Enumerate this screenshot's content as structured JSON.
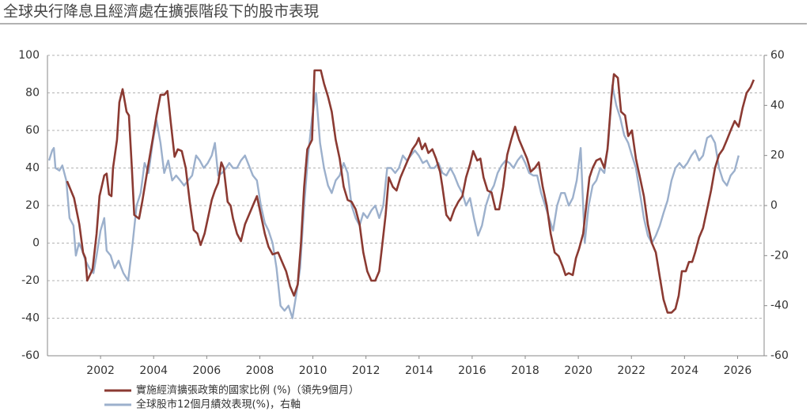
{
  "chart_data": {
    "type": "line",
    "title": "全球央行降息且經濟處在擴張階段下的股市表現",
    "xlim": [
      2000,
      2027
    ],
    "xticks": [
      2002,
      2004,
      2006,
      2008,
      2010,
      2012,
      2014,
      2016,
      2018,
      2020,
      2022,
      2024,
      2026
    ],
    "ylim": [
      -60,
      100
    ],
    "yticks": [
      -60,
      -40,
      -20,
      0,
      20,
      40,
      60,
      80,
      100
    ],
    "y2lim": [
      -60,
      60
    ],
    "y2ticks": [
      -60,
      -40,
      -20,
      0,
      20,
      40,
      60
    ],
    "grid": true,
    "legend": "bottom",
    "series": [
      {
        "name": "實施經濟擴張政策的國家比例 (%)（領先9個月）",
        "color": "#8b3a32",
        "x": [
          2000.74,
          2001.0,
          2001.2,
          2001.34,
          2001.43,
          2001.5,
          2001.7,
          2001.85,
          2001.96,
          2002.14,
          2002.23,
          2002.32,
          2002.41,
          2002.47,
          2002.62,
          2002.71,
          2002.83,
          2002.98,
          2003.07,
          2003.18,
          2003.27,
          2003.45,
          2003.57,
          2003.78,
          2003.96,
          2004.11,
          2004.26,
          2004.4,
          2004.52,
          2004.64,
          2004.79,
          2004.91,
          2005.06,
          2005.21,
          2005.36,
          2005.51,
          2005.65,
          2005.77,
          2005.92,
          2006.07,
          2006.19,
          2006.31,
          2006.43,
          2006.55,
          2006.64,
          2006.79,
          2006.9,
          2006.99,
          2007.14,
          2007.29,
          2007.44,
          2007.59,
          2007.8,
          2007.89,
          2008.04,
          2008.19,
          2008.33,
          2008.48,
          2008.69,
          2008.84,
          2008.99,
          2009.14,
          2009.29,
          2009.43,
          2009.55,
          2009.67,
          2009.79,
          2009.97,
          2010.06,
          2010.3,
          2010.42,
          2010.57,
          2010.71,
          2010.86,
          2011.01,
          2011.16,
          2011.31,
          2011.46,
          2011.61,
          2011.76,
          2011.9,
          2012.05,
          2012.2,
          2012.35,
          2012.5,
          2012.62,
          2012.74,
          2012.86,
          2013.01,
          2013.15,
          2013.3,
          2013.45,
          2013.6,
          2013.75,
          2013.9,
          2013.99,
          2014.11,
          2014.23,
          2014.35,
          2014.5,
          2014.64,
          2014.79,
          2014.88,
          2015.03,
          2015.18,
          2015.33,
          2015.48,
          2015.63,
          2015.77,
          2015.92,
          2016.04,
          2016.19,
          2016.31,
          2016.43,
          2016.58,
          2016.73,
          2016.88,
          2017.02,
          2017.17,
          2017.32,
          2017.47,
          2017.62,
          2017.77,
          2017.92,
          2018.07,
          2018.21,
          2018.36,
          2018.51,
          2018.66,
          2018.81,
          2018.96,
          2019.11,
          2019.26,
          2019.4,
          2019.52,
          2019.64,
          2019.79,
          2019.91,
          2020.03,
          2020.18,
          2020.3,
          2020.42,
          2020.54,
          2020.68,
          2020.83,
          2020.98,
          2021.1,
          2021.25,
          2021.34,
          2021.49,
          2021.61,
          2021.76,
          2021.88,
          2022.02,
          2022.17,
          2022.32,
          2022.47,
          2022.62,
          2022.77,
          2022.92,
          2023.07,
          2023.21,
          2023.36,
          2023.51,
          2023.66,
          2023.78,
          2023.9,
          2024.05,
          2024.17,
          2024.29,
          2024.4,
          2024.55,
          2024.7,
          2024.85,
          2025.0,
          2025.15,
          2025.3,
          2025.45,
          2025.6,
          2025.74,
          2025.89,
          2026.04,
          2026.19,
          2026.34,
          2026.49,
          2026.61
        ],
        "values": [
          33,
          24,
          10,
          -5,
          -8,
          -20,
          -14,
          5,
          25,
          36,
          37,
          26,
          25,
          40,
          55,
          75,
          82,
          70,
          68,
          40,
          15,
          13,
          22,
          40,
          55,
          68,
          79,
          79,
          81,
          65,
          46,
          50,
          49,
          40,
          22,
          7,
          5,
          -1,
          5,
          15,
          23,
          28,
          32,
          43,
          40,
          22,
          20,
          13,
          5,
          1,
          10,
          15,
          22,
          25,
          15,
          5,
          -2,
          -6,
          -5,
          -10,
          -15,
          -23,
          -28,
          -22,
          0,
          30,
          50,
          55,
          92,
          92,
          85,
          78,
          70,
          55,
          45,
          30,
          23,
          22,
          18,
          10,
          -5,
          -15,
          -20,
          -20,
          -15,
          0,
          15,
          35,
          30,
          28,
          35,
          40,
          45,
          50,
          53,
          56,
          50,
          53,
          48,
          50,
          45,
          38,
          30,
          15,
          12,
          18,
          22,
          25,
          35,
          42,
          49,
          44,
          45,
          35,
          28,
          27,
          18,
          18,
          30,
          47,
          55,
          62,
          55,
          50,
          45,
          38,
          40,
          43,
          30,
          20,
          5,
          -5,
          -7,
          -12,
          -17,
          -16,
          -17,
          -8,
          -3,
          5,
          20,
          35,
          40,
          44,
          45,
          40,
          50,
          78,
          90,
          88,
          70,
          68,
          57,
          60,
          45,
          35,
          25,
          10,
          0,
          -5,
          -18,
          -30,
          -37,
          -37,
          -35,
          -28,
          -15,
          -15,
          -10,
          -10,
          -5,
          3,
          8,
          18,
          28,
          40,
          47,
          50,
          55,
          60,
          65,
          62,
          72,
          80,
          83,
          87
        ]
      },
      {
        "name": "全球股市12個月績效表現(%)，右軸",
        "color": "#9cb0cc",
        "axis": "y2",
        "x": [
          2000.06,
          2000.18,
          2000.24,
          2000.3,
          2000.45,
          2000.56,
          2000.71,
          2000.83,
          2000.98,
          2001.07,
          2001.19,
          2001.31,
          2001.43,
          2001.58,
          2001.73,
          2001.85,
          2002.0,
          2002.14,
          2002.23,
          2002.38,
          2002.53,
          2002.68,
          2002.86,
          2003.04,
          2003.21,
          2003.36,
          2003.51,
          2003.66,
          2003.81,
          2003.96,
          2004.11,
          2004.26,
          2004.4,
          2004.55,
          2004.7,
          2004.85,
          2005.0,
          2005.15,
          2005.3,
          2005.45,
          2005.6,
          2005.74,
          2005.89,
          2006.04,
          2006.19,
          2006.31,
          2006.43,
          2006.58,
          2006.73,
          2006.85,
          2006.99,
          2007.14,
          2007.29,
          2007.44,
          2007.59,
          2007.74,
          2007.89,
          2008.04,
          2008.19,
          2008.33,
          2008.48,
          2008.63,
          2008.78,
          2008.93,
          2009.08,
          2009.23,
          2009.38,
          2009.52,
          2009.67,
          2009.82,
          2009.97,
          2010.12,
          2010.27,
          2010.42,
          2010.57,
          2010.71,
          2010.86,
          2011.01,
          2011.16,
          2011.31,
          2011.46,
          2011.61,
          2011.76,
          2011.9,
          2012.05,
          2012.2,
          2012.35,
          2012.5,
          2012.65,
          2012.8,
          2012.95,
          2013.1,
          2013.24,
          2013.39,
          2013.54,
          2013.69,
          2013.84,
          2013.99,
          2014.14,
          2014.29,
          2014.43,
          2014.58,
          2014.73,
          2014.88,
          2015.03,
          2015.18,
          2015.33,
          2015.48,
          2015.63,
          2015.77,
          2015.92,
          2016.07,
          2016.22,
          2016.37,
          2016.52,
          2016.67,
          2016.82,
          2016.96,
          2017.11,
          2017.26,
          2017.41,
          2017.56,
          2017.71,
          2017.86,
          2018.0,
          2018.15,
          2018.3,
          2018.45,
          2018.6,
          2018.75,
          2018.9,
          2019.05,
          2019.2,
          2019.35,
          2019.49,
          2019.64,
          2019.79,
          2019.94,
          2020.09,
          2020.24,
          2020.39,
          2020.54,
          2020.68,
          2020.83,
          2020.98,
          2021.13,
          2021.28,
          2021.43,
          2021.58,
          2021.73,
          2021.88,
          2022.02,
          2022.17,
          2022.32,
          2022.47,
          2022.62,
          2022.77,
          2022.92,
          2023.07,
          2023.21,
          2023.36,
          2023.51,
          2023.66,
          2023.81,
          2023.96,
          2024.11,
          2024.26,
          2024.4,
          2024.55,
          2024.7,
          2024.85,
          2025.0,
          2025.15,
          2025.3,
          2025.45,
          2025.6,
          2025.74,
          2025.89,
          2026.04
        ],
        "values": [
          18,
          22,
          23,
          15,
          14,
          16,
          10,
          -5,
          -8,
          -20,
          -15,
          -18,
          -22,
          -25,
          -27,
          -20,
          -10,
          -5,
          -18,
          -20,
          -25,
          -22,
          -27,
          -30,
          -15,
          0,
          5,
          17,
          13,
          25,
          34,
          25,
          13,
          18,
          10,
          12,
          10,
          8,
          10,
          12,
          20,
          18,
          15,
          17,
          20,
          25,
          12,
          13,
          15,
          17,
          15,
          15,
          18,
          20,
          16,
          12,
          10,
          0,
          -7,
          -10,
          -15,
          -25,
          -40,
          -42,
          -40,
          -45,
          -35,
          -25,
          0,
          20,
          35,
          45,
          25,
          15,
          8,
          5,
          10,
          12,
          17,
          13,
          0,
          -5,
          -8,
          -3,
          -5,
          -2,
          0,
          -5,
          0,
          15,
          15,
          13,
          15,
          20,
          18,
          20,
          22,
          20,
          17,
          18,
          15,
          15,
          17,
          13,
          12,
          15,
          12,
          8,
          5,
          0,
          3,
          -5,
          -12,
          -8,
          0,
          5,
          8,
          13,
          16,
          18,
          17,
          15,
          18,
          20,
          17,
          13,
          12,
          12,
          5,
          0,
          -5,
          -10,
          0,
          5,
          5,
          0,
          3,
          10,
          23,
          -15,
          0,
          8,
          10,
          15,
          13,
          25,
          48,
          40,
          35,
          28,
          25,
          20,
          15,
          5,
          -5,
          -12,
          -15,
          -12,
          -8,
          -3,
          2,
          10,
          15,
          17,
          15,
          17,
          20,
          22,
          18,
          20,
          27,
          28,
          25,
          15,
          10,
          8,
          12,
          14,
          20
        ]
      }
    ]
  }
}
